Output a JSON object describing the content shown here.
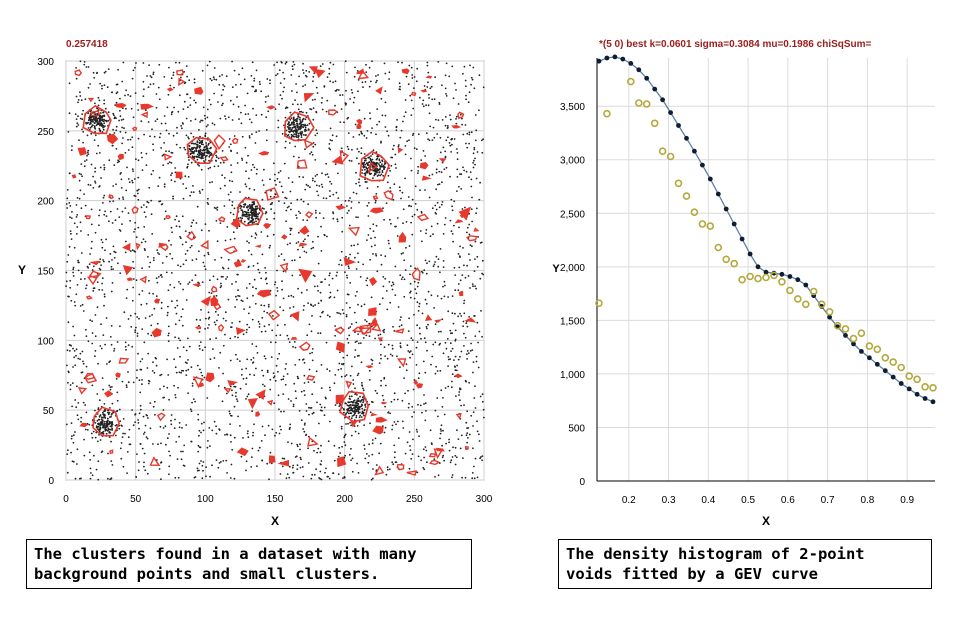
{
  "chart_data": [
    {
      "type": "scatter",
      "title": "0.257418",
      "xlabel": "X",
      "ylabel": "Y",
      "xlim": [
        0,
        300
      ],
      "ylim": [
        0,
        300
      ],
      "xticks": [
        0,
        50,
        100,
        150,
        200,
        250,
        300
      ],
      "yticks": [
        0,
        50,
        100,
        150,
        200,
        250,
        300
      ],
      "grid": true,
      "background_points_estimate": 3000,
      "clusters": [
        {
          "center": [
            22,
            257
          ],
          "points": 160,
          "spread": 4.5
        },
        {
          "center": [
            97,
            236
          ],
          "points": 160,
          "spread": 4.5
        },
        {
          "center": [
            166,
            252
          ],
          "points": 160,
          "spread": 4.5
        },
        {
          "center": [
            221,
            224
          ],
          "points": 160,
          "spread": 4.5
        },
        {
          "center": [
            132,
            192
          ],
          "points": 160,
          "spread": 4.5
        },
        {
          "center": [
            28,
            41
          ],
          "points": 160,
          "spread": 4.5
        },
        {
          "center": [
            207,
            52
          ],
          "points": 160,
          "spread": 4.5
        }
      ],
      "colors": {
        "points": "#222222",
        "hull": "#e8392d",
        "title": "#9c1c1c"
      }
    },
    {
      "type": "scatter",
      "title": "*(5 0) best k=0.0601 sigma=0.3084 mu=0.1986 chiSqSum=",
      "xlabel": "X",
      "ylabel": "Y",
      "xlim": [
        0.12,
        0.97
      ],
      "ylim": [
        0,
        3950
      ],
      "xticks": [
        0.2,
        0.3,
        0.4,
        0.5,
        0.6,
        0.7,
        0.8,
        0.9
      ],
      "yticks": [
        0,
        500,
        1000,
        1500,
        2000,
        2500,
        3000,
        3500
      ],
      "ytick_labels": [
        "0",
        "500",
        "1,000",
        "1,500",
        "2,000",
        "2,500",
        "3,000",
        "3,500"
      ],
      "grid": true,
      "series": [
        {
          "marker": "filled-dot",
          "x": [
            0.125,
            0.145,
            0.165,
            0.185,
            0.205,
            0.225,
            0.245,
            0.265,
            0.285,
            0.305,
            0.325,
            0.345,
            0.365,
            0.385,
            0.405,
            0.425,
            0.445,
            0.465,
            0.485,
            0.505,
            0.525,
            0.545,
            0.565,
            0.585,
            0.605,
            0.625,
            0.645,
            0.665,
            0.685,
            0.705,
            0.725,
            0.745,
            0.765,
            0.785,
            0.805,
            0.825,
            0.845,
            0.865,
            0.885,
            0.905,
            0.925,
            0.945,
            0.965
          ],
          "values": [
            3920,
            3950,
            3960,
            3940,
            3900,
            3840,
            3760,
            3660,
            3560,
            3440,
            3320,
            3200,
            3080,
            2950,
            2820,
            2680,
            2540,
            2400,
            2260,
            2120,
            2000,
            1950,
            1940,
            1930,
            1910,
            1880,
            1830,
            1730,
            1630,
            1530,
            1440,
            1360,
            1280,
            1210,
            1150,
            1090,
            1030,
            970,
            910,
            860,
            810,
            770,
            740
          ]
        },
        {
          "marker": "open-circle",
          "x": [
            0.125,
            0.145,
            0.205,
            0.225,
            0.245,
            0.265,
            0.285,
            0.305,
            0.325,
            0.345,
            0.365,
            0.385,
            0.405,
            0.425,
            0.445,
            0.465,
            0.485,
            0.505,
            0.525,
            0.545,
            0.565,
            0.585,
            0.605,
            0.625,
            0.645,
            0.665,
            0.685,
            0.705,
            0.725,
            0.745,
            0.765,
            0.785,
            0.805,
            0.825,
            0.845,
            0.865,
            0.885,
            0.905,
            0.925,
            0.945,
            0.965
          ],
          "values": [
            1660,
            3430,
            3730,
            3530,
            3520,
            3340,
            3080,
            3030,
            2780,
            2660,
            2510,
            2400,
            2380,
            2180,
            2070,
            2030,
            1880,
            1910,
            1890,
            1900,
            1920,
            1860,
            1780,
            1700,
            1650,
            1770,
            1650,
            1580,
            1450,
            1420,
            1330,
            1380,
            1260,
            1230,
            1150,
            1110,
            1060,
            980,
            950,
            880,
            870
          ]
        }
      ],
      "colors": {
        "curve": "#5b7fa6",
        "dots": "#0e1e30",
        "circles": "#b4a83a",
        "title": "#9c1c1c"
      }
    }
  ],
  "captions": {
    "left": "The clusters found in a dataset with many\nbackground points and small clusters.",
    "right": "The density histogram of 2-point\nvoids fitted by a GEV curve"
  }
}
